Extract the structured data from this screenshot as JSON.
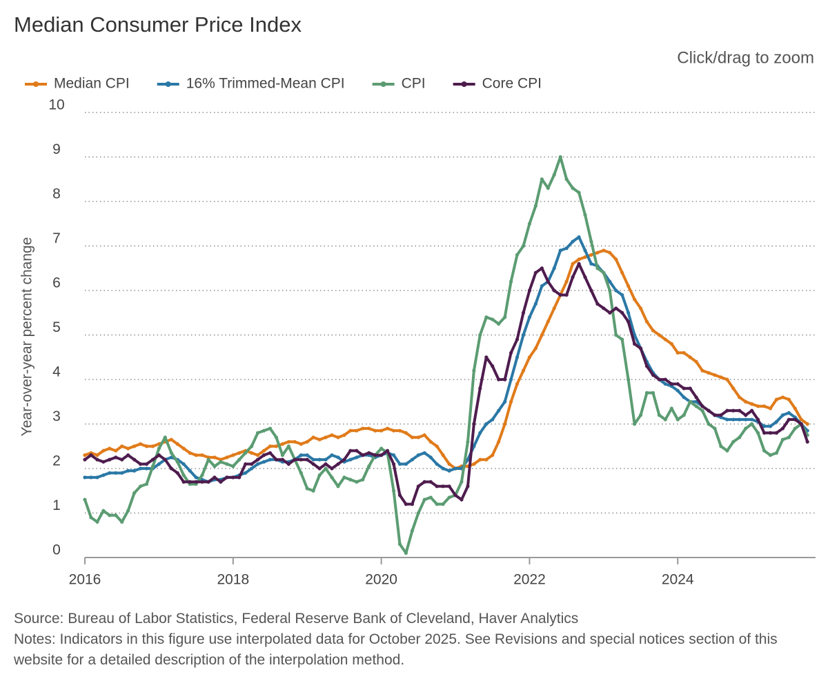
{
  "chart_data": {
    "type": "line",
    "title": "Median Consumer Price Index",
    "zoom_hint": "Click/drag to zoom",
    "y_label": "Year-over-year percent change",
    "source": "Source: Bureau of Labor Statistics, Federal Reserve Bank of Cleveland, Haver Analytics",
    "notes": "Notes: Indicators in this figure use interpolated data for October 2025. See Revisions and special notices section of this website for a detailed description of the interpolation method.",
    "xlim": [
      2016,
      2025.86
    ],
    "xticks": [
      2016,
      2018,
      2020,
      2022,
      2024
    ],
    "ylim": [
      0,
      10
    ],
    "yticks": [
      0,
      1,
      2,
      3,
      4,
      5,
      6,
      7,
      8,
      9,
      10
    ],
    "grid": true,
    "legend": "top",
    "x": [
      2016,
      2016.083,
      2016.167,
      2016.25,
      2016.333,
      2016.417,
      2016.5,
      2016.583,
      2016.667,
      2016.75,
      2016.833,
      2016.917,
      2017,
      2017.083,
      2017.167,
      2017.25,
      2017.333,
      2017.417,
      2017.5,
      2017.583,
      2017.667,
      2017.75,
      2017.833,
      2017.917,
      2018,
      2018.083,
      2018.167,
      2018.25,
      2018.333,
      2018.417,
      2018.5,
      2018.583,
      2018.667,
      2018.75,
      2018.833,
      2018.917,
      2019,
      2019.083,
      2019.167,
      2019.25,
      2019.333,
      2019.417,
      2019.5,
      2019.583,
      2019.667,
      2019.75,
      2019.833,
      2019.917,
      2020,
      2020.083,
      2020.167,
      2020.25,
      2020.333,
      2020.417,
      2020.5,
      2020.583,
      2020.667,
      2020.75,
      2020.833,
      2020.917,
      2021,
      2021.083,
      2021.167,
      2021.25,
      2021.333,
      2021.417,
      2021.5,
      2021.583,
      2021.667,
      2021.75,
      2021.833,
      2021.917,
      2022,
      2022.083,
      2022.167,
      2022.25,
      2022.333,
      2022.417,
      2022.5,
      2022.583,
      2022.667,
      2022.75,
      2022.833,
      2022.917,
      2023,
      2023.083,
      2023.167,
      2023.25,
      2023.333,
      2023.417,
      2023.5,
      2023.583,
      2023.667,
      2023.75,
      2023.833,
      2023.917,
      2024,
      2024.083,
      2024.167,
      2024.25,
      2024.333,
      2024.417,
      2024.5,
      2024.583,
      2024.667,
      2024.75,
      2024.833,
      2024.917,
      2025,
      2025.083,
      2025.167,
      2025.25,
      2025.333,
      2025.417,
      2025.5,
      2025.583,
      2025.667,
      2025.75
    ],
    "series": [
      {
        "name": "Median CPI",
        "color": "#e07b1a",
        "values": [
          2.3,
          2.35,
          2.3,
          2.4,
          2.45,
          2.4,
          2.5,
          2.45,
          2.5,
          2.55,
          2.5,
          2.5,
          2.55,
          2.6,
          2.65,
          2.55,
          2.45,
          2.35,
          2.3,
          2.3,
          2.25,
          2.25,
          2.2,
          2.25,
          2.3,
          2.35,
          2.4,
          2.35,
          2.3,
          2.4,
          2.5,
          2.5,
          2.55,
          2.6,
          2.6,
          2.55,
          2.6,
          2.7,
          2.65,
          2.7,
          2.75,
          2.7,
          2.75,
          2.85,
          2.85,
          2.9,
          2.9,
          2.85,
          2.85,
          2.9,
          2.85,
          2.85,
          2.8,
          2.7,
          2.7,
          2.75,
          2.6,
          2.5,
          2.3,
          2.1,
          2.0,
          2.05,
          2.05,
          2.1,
          2.2,
          2.2,
          2.3,
          2.6,
          3.0,
          3.5,
          3.9,
          4.2,
          4.5,
          4.7,
          5.0,
          5.3,
          5.6,
          5.9,
          6.2,
          6.6,
          6.7,
          6.75,
          6.8,
          6.85,
          6.9,
          6.85,
          6.7,
          6.4,
          6.1,
          5.8,
          5.6,
          5.3,
          5.1,
          5.0,
          4.9,
          4.8,
          4.6,
          4.6,
          4.5,
          4.4,
          4.2,
          4.15,
          4.1,
          4.05,
          4.0,
          3.8,
          3.6,
          3.5,
          3.45,
          3.4,
          3.4,
          3.35,
          3.55,
          3.6,
          3.55,
          3.35,
          3.1,
          3.0
        ]
      },
      {
        "name": "16% Trimmed-Mean CPI",
        "color": "#2a78a6",
        "values": [
          1.8,
          1.8,
          1.8,
          1.85,
          1.9,
          1.9,
          1.9,
          1.95,
          1.95,
          2.0,
          2.0,
          2.0,
          2.1,
          2.2,
          2.25,
          2.2,
          2.1,
          1.95,
          1.8,
          1.75,
          1.7,
          1.75,
          1.75,
          1.8,
          1.8,
          1.85,
          1.9,
          2.0,
          2.1,
          2.15,
          2.2,
          2.2,
          2.15,
          2.15,
          2.2,
          2.3,
          2.3,
          2.2,
          2.2,
          2.2,
          2.3,
          2.25,
          2.15,
          2.2,
          2.25,
          2.3,
          2.3,
          2.25,
          2.3,
          2.35,
          2.3,
          2.1,
          2.1,
          2.2,
          2.3,
          2.35,
          2.25,
          2.1,
          2.0,
          1.95,
          2.0,
          2.0,
          2.2,
          2.5,
          2.8,
          3.0,
          3.1,
          3.3,
          3.5,
          4.0,
          4.5,
          5.0,
          5.4,
          5.7,
          6.1,
          6.2,
          6.5,
          6.9,
          6.95,
          7.1,
          7.2,
          6.9,
          6.6,
          6.55,
          6.4,
          6.2,
          6.0,
          5.9,
          5.5,
          5.0,
          4.7,
          4.4,
          4.15,
          4.0,
          3.9,
          3.85,
          3.75,
          3.6,
          3.5,
          3.5,
          3.4,
          3.3,
          3.2,
          3.15,
          3.1,
          3.1,
          3.1,
          3.1,
          3.1,
          3.05,
          2.95,
          2.95,
          3.05,
          3.2,
          3.25,
          3.15,
          3.0,
          2.85
        ]
      },
      {
        "name": "CPI",
        "color": "#5b9c72",
        "values": [
          1.3,
          0.9,
          0.8,
          1.05,
          0.95,
          0.95,
          0.8,
          1.05,
          1.45,
          1.6,
          1.65,
          2.05,
          2.45,
          2.7,
          2.35,
          2.15,
          1.85,
          1.65,
          1.65,
          1.85,
          2.2,
          2.05,
          2.15,
          2.1,
          2.05,
          2.2,
          2.35,
          2.5,
          2.8,
          2.85,
          2.9,
          2.7,
          2.3,
          2.5,
          2.2,
          1.9,
          1.55,
          1.5,
          1.85,
          2.0,
          1.8,
          1.6,
          1.8,
          1.75,
          1.7,
          1.75,
          2.05,
          2.3,
          2.45,
          2.35,
          1.5,
          0.3,
          0.1,
          0.6,
          1.0,
          1.3,
          1.35,
          1.2,
          1.2,
          1.35,
          1.4,
          1.7,
          2.6,
          4.2,
          5.0,
          5.4,
          5.35,
          5.25,
          5.4,
          6.2,
          6.8,
          7.0,
          7.5,
          7.9,
          8.5,
          8.3,
          8.6,
          9.0,
          8.5,
          8.3,
          8.2,
          7.7,
          7.1,
          6.5,
          6.4,
          6.0,
          5.0,
          4.9,
          4.0,
          3.0,
          3.2,
          3.7,
          3.7,
          3.2,
          3.1,
          3.35,
          3.1,
          3.2,
          3.5,
          3.4,
          3.3,
          3.0,
          2.9,
          2.5,
          2.4,
          2.6,
          2.7,
          2.9,
          3.0,
          2.8,
          2.4,
          2.3,
          2.35,
          2.65,
          2.7,
          2.9,
          3.0,
          2.75
        ]
      },
      {
        "name": "Core CPI",
        "color": "#4e1c4e",
        "values": [
          2.2,
          2.3,
          2.2,
          2.15,
          2.2,
          2.25,
          2.2,
          2.3,
          2.2,
          2.1,
          2.1,
          2.2,
          2.3,
          2.2,
          2.0,
          1.9,
          1.7,
          1.7,
          1.7,
          1.7,
          1.7,
          1.8,
          1.7,
          1.8,
          1.8,
          1.8,
          2.1,
          2.1,
          2.2,
          2.3,
          2.35,
          2.2,
          2.2,
          2.1,
          2.2,
          2.2,
          2.2,
          2.1,
          2.0,
          2.1,
          2.0,
          2.1,
          2.2,
          2.4,
          2.4,
          2.3,
          2.35,
          2.3,
          2.3,
          2.4,
          2.1,
          1.4,
          1.2,
          1.2,
          1.6,
          1.7,
          1.7,
          1.6,
          1.6,
          1.6,
          1.4,
          1.3,
          1.6,
          3.0,
          3.8,
          4.5,
          4.3,
          4.0,
          4.0,
          4.6,
          4.9,
          5.5,
          6.0,
          6.4,
          6.5,
          6.2,
          6.0,
          5.9,
          5.9,
          6.3,
          6.6,
          6.3,
          6.0,
          5.7,
          5.6,
          5.5,
          5.6,
          5.5,
          5.3,
          4.8,
          4.7,
          4.3,
          4.1,
          4.0,
          4.0,
          3.9,
          3.9,
          3.8,
          3.8,
          3.6,
          3.4,
          3.3,
          3.2,
          3.2,
          3.3,
          3.3,
          3.3,
          3.2,
          3.3,
          3.1,
          2.8,
          2.8,
          2.8,
          2.9,
          3.1,
          3.1,
          3.0,
          2.6
        ]
      }
    ]
  }
}
